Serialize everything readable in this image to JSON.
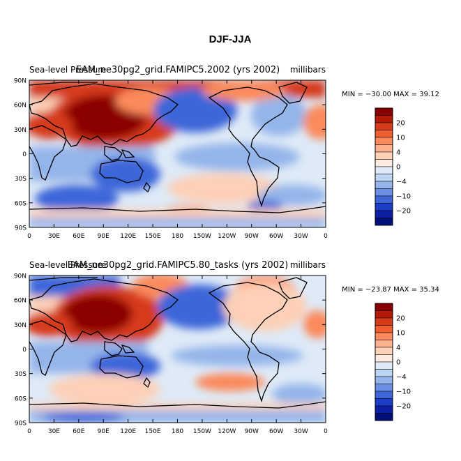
{
  "figure": {
    "title": "DJF-JJA"
  },
  "chart_data": [
    {
      "type": "heatmap",
      "left_title": "Sea-level Pressure",
      "center_title": "EAM_ne30pg2_grid.FAMIPC5.2002 (yrs 2002)",
      "units": "millibars",
      "min_max_text": "MIN = −30.00  MAX =  39.12",
      "min": -30.0,
      "max": 39.12,
      "y_ticks": [
        "90N",
        "60N",
        "30N",
        "0",
        "30S",
        "60S",
        "90S"
      ],
      "x_ticks": [
        "0",
        "30E",
        "60E",
        "90E",
        "120E",
        "150E",
        "180",
        "150W",
        "120W",
        "90W",
        "60W",
        "30W",
        "0"
      ]
    },
    {
      "type": "heatmap",
      "left_title": "Sea-level Pressure",
      "center_title": "EAM_ne30pg2_grid.FAMIPC5.80_tasks (yrs 2002)",
      "units": "millibars",
      "min_max_text": "MIN = −23.87  MAX =  35.34",
      "min": -23.87,
      "max": 35.34,
      "y_ticks": [
        "90N",
        "60N",
        "30N",
        "0",
        "30S",
        "60S",
        "90S"
      ],
      "x_ticks": [
        "0",
        "30E",
        "60E",
        "90E",
        "120E",
        "150E",
        "180",
        "150W",
        "120W",
        "90W",
        "60W",
        "30W",
        "0"
      ]
    }
  ],
  "colorbar": {
    "labels": [
      "20",
      "10",
      "4",
      "0",
      "−4",
      "−10",
      "−20"
    ],
    "colors": [
      "#8b0000",
      "#b21c07",
      "#d63b1a",
      "#f15e2f",
      "#fb8a5c",
      "#fcb08f",
      "#fdd0b7",
      "#fdecdf",
      "#deeaf7",
      "#bcd4f1",
      "#94b5ea",
      "#6a90e3",
      "#3e66d9",
      "#1d3fc7",
      "#0c20a5",
      "#00107a"
    ]
  },
  "map_colors": {
    "deep_red": "#8b0000",
    "red": "#d63b1a",
    "orange": "#fb8a5c",
    "light_orange": "#fdd0b7",
    "pale_blue": "#deeaf7",
    "light_blue": "#94b5ea",
    "blue": "#3e66d9",
    "deep_blue": "#0c20a5",
    "coast": "#000000"
  }
}
